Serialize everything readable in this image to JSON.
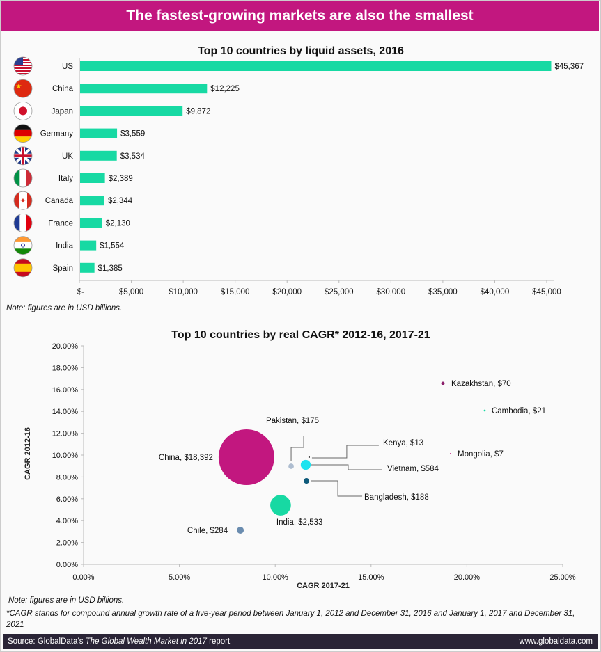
{
  "header": {
    "title": "The fastest-growing markets are also the smallest"
  },
  "chart_data": [
    {
      "type": "bar",
      "orientation": "horizontal",
      "title": "Top 10 countries by liquid assets, 2016",
      "categories": [
        "US",
        "China",
        "Japan",
        "Germany",
        "UK",
        "Italy",
        "Canada",
        "France",
        "India",
        "Spain"
      ],
      "values": [
        45367,
        12225,
        9872,
        3559,
        3534,
        2389,
        2344,
        2130,
        1554,
        1385
      ],
      "value_labels": [
        "$45,367",
        "$12,225",
        "$9,872",
        "$3,559",
        "$3,534",
        "$2,389",
        "$2,344",
        "$2,130",
        "$1,554",
        "$1,385"
      ],
      "xlim": [
        0,
        45000
      ],
      "x_ticks": [
        "$-",
        "$5,000",
        "$10,000",
        "$15,000",
        "$20,000",
        "$25,000",
        "$30,000",
        "$35,000",
        "$40,000",
        "$45,000"
      ],
      "x_tick_values": [
        0,
        5000,
        10000,
        15000,
        20000,
        25000,
        30000,
        35000,
        40000,
        45000
      ],
      "bar_color": "#17d9a3",
      "flag_icons": [
        "us-flag-icon",
        "china-flag-icon",
        "japan-flag-icon",
        "germany-flag-icon",
        "uk-flag-icon",
        "italy-flag-icon",
        "canada-flag-icon",
        "france-flag-icon",
        "india-flag-icon",
        "spain-flag-icon"
      ],
      "grid": false
    },
    {
      "type": "scatter",
      "subtype": "bubble",
      "title": "Top 10 countries by real CAGR* 2012-16, 2017-21",
      "xlabel": "CAGR 2017-21",
      "ylabel": "CAGR 2012-16",
      "xlim": [
        0,
        25
      ],
      "ylim": [
        0,
        20
      ],
      "x_ticks": [
        "0.00%",
        "5.00%",
        "10.00%",
        "15.00%",
        "20.00%",
        "25.00%"
      ],
      "y_ticks": [
        "0.00%",
        "2.00%",
        "4.00%",
        "6.00%",
        "8.00%",
        "10.00%",
        "12.00%",
        "14.00%",
        "16.00%",
        "18.00%",
        "20.00%"
      ],
      "grid": false,
      "points": [
        {
          "name": "Kazakhstan",
          "x": 18.75,
          "y": 16.56,
          "size": 70,
          "label": "Kazakhstan,  $70",
          "color": "#8b1f6b"
        },
        {
          "name": "Cambodia",
          "x": 20.93,
          "y": 14.08,
          "size": 21,
          "label": "Cambodia,  $21",
          "color": "#17d9a3"
        },
        {
          "name": "Mongolia",
          "x": 19.15,
          "y": 10.13,
          "size": 7,
          "label": "Mongolia,  $7",
          "color": "#c2177f"
        },
        {
          "name": "China",
          "x": 8.5,
          "y": 9.81,
          "size": 18392,
          "label": "China,  $18,392",
          "color": "#c2177f"
        },
        {
          "name": "Pakistan",
          "x": 10.83,
          "y": 8.98,
          "size": 175,
          "label": "Pakistan,  $175",
          "color": "#aebdd0"
        },
        {
          "name": "Kenya",
          "x": 11.77,
          "y": 9.81,
          "size": 13,
          "label": "Kenya,  $13",
          "color": "#222222"
        },
        {
          "name": "Vietnam",
          "x": 11.59,
          "y": 9.11,
          "size": 584,
          "label": "Vietnam,  $584",
          "color": "#1de3ef"
        },
        {
          "name": "Bangladesh",
          "x": 11.63,
          "y": 7.64,
          "size": 188,
          "label": "Bangladesh,  $188",
          "color": "#0e5a7a"
        },
        {
          "name": "India",
          "x": 10.28,
          "y": 5.41,
          "size": 2533,
          "label": "India,  $2,533",
          "color": "#17d9a3"
        },
        {
          "name": "Chile",
          "x": 8.18,
          "y": 3.12,
          "size": 284,
          "label": "Chile,  $284",
          "color": "#6a8caf"
        }
      ]
    }
  ],
  "notes": {
    "bar_note": "Note: figures are in USD billions.",
    "bubble_note": "Note: figures are in USD billions.",
    "cagr_note": "*CAGR stands for compound annual growth rate of a five-year period between January 1, 2012 and December 31, 2016 and January 1, 2017 and December 31, 2021"
  },
  "footer": {
    "source_prefix": "Source: GlobalData’s ",
    "source_title": "The Global Wealth Market in 2017",
    "source_suffix": " report",
    "website": "www.globaldata.com"
  },
  "colors": {
    "header": "#c2177f",
    "footer": "#2a2436"
  }
}
